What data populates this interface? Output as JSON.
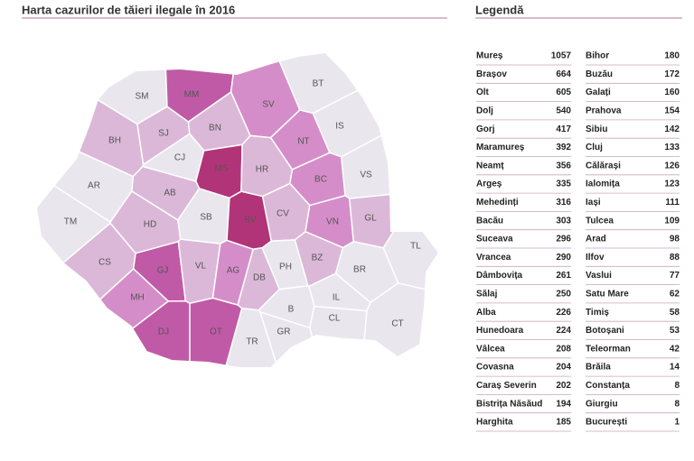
{
  "header": {
    "title": "Harta cazurilor de tăieri ilegale în 2016"
  },
  "map": {
    "regions": [
      {
        "label": "SM",
        "color": "#e9e6ee"
      },
      {
        "label": "MM",
        "color": "#c05aa6"
      },
      {
        "label": "BT",
        "color": "#e9e6ee"
      },
      {
        "label": "SV",
        "color": "#d58dc9"
      },
      {
        "label": "SJ",
        "color": "#dcb8d8"
      },
      {
        "label": "BN",
        "color": "#dcb8d8"
      },
      {
        "label": "IS",
        "color": "#e9e6ee"
      },
      {
        "label": "BH",
        "color": "#dcb8d8"
      },
      {
        "label": "CJ",
        "color": "#e9e6ee"
      },
      {
        "label": "NT",
        "color": "#d58dc9"
      },
      {
        "label": "MS",
        "color": "#b23478"
      },
      {
        "label": "HR",
        "color": "#dcb8d8"
      },
      {
        "label": "BC",
        "color": "#d58dc9"
      },
      {
        "label": "VS",
        "color": "#e9e6ee"
      },
      {
        "label": "AR",
        "color": "#e9e6ee"
      },
      {
        "label": "AB",
        "color": "#dcb8d8"
      },
      {
        "label": "SB",
        "color": "#e9e6ee"
      },
      {
        "label": "CV",
        "color": "#dcb8d8"
      },
      {
        "label": "VN",
        "color": "#d58dc9"
      },
      {
        "label": "GL",
        "color": "#dcb8d8"
      },
      {
        "label": "TM",
        "color": "#e9e6ee"
      },
      {
        "label": "HD",
        "color": "#dcb8d8"
      },
      {
        "label": "BV",
        "color": "#b23478"
      },
      {
        "label": "CS",
        "color": "#dcb8d8"
      },
      {
        "label": "GJ",
        "color": "#c05aa6"
      },
      {
        "label": "VL",
        "color": "#dcb8d8"
      },
      {
        "label": "AG",
        "color": "#d58dc9"
      },
      {
        "label": "DB",
        "color": "#dcb8d8"
      },
      {
        "label": "PH",
        "color": "#e9e6ee"
      },
      {
        "label": "BZ",
        "color": "#dcb8d8"
      },
      {
        "label": "BR",
        "color": "#e9e6ee"
      },
      {
        "label": "TL",
        "color": "#e9e6ee"
      },
      {
        "label": "MH",
        "color": "#d58dc9"
      },
      {
        "label": "IL",
        "color": "#e9e6ee"
      },
      {
        "label": "B",
        "color": "#e9e6ee"
      },
      {
        "label": "CL",
        "color": "#e9e6ee"
      },
      {
        "label": "DJ",
        "color": "#c05aa6"
      },
      {
        "label": "OT",
        "color": "#c05aa6"
      },
      {
        "label": "GR",
        "color": "#e9e6ee"
      },
      {
        "label": "TR",
        "color": "#e9e6ee"
      },
      {
        "label": "CT",
        "color": "#e9e6ee"
      }
    ]
  },
  "legend": {
    "title": "Legendă",
    "columns": [
      {
        "rows": [
          {
            "name": "Mureș",
            "value": 1057
          },
          {
            "name": "Brașov",
            "value": 664
          },
          {
            "name": "Olt",
            "value": 605
          },
          {
            "name": "Dolj",
            "value": 540
          },
          {
            "name": "Gorj",
            "value": 417
          },
          {
            "name": "Maramureș",
            "value": 392
          },
          {
            "name": "Neamț",
            "value": 356
          },
          {
            "name": "Argeș",
            "value": 335
          },
          {
            "name": "Mehedinți",
            "value": 316
          },
          {
            "name": "Bacău",
            "value": 303
          },
          {
            "name": "Suceava",
            "value": 296
          },
          {
            "name": "Vrancea",
            "value": 290
          },
          {
            "name": "Dâmbovița",
            "value": 261
          },
          {
            "name": "Sălaj",
            "value": 250
          },
          {
            "name": "Alba",
            "value": 226
          },
          {
            "name": "Hunedoara",
            "value": 224
          },
          {
            "name": "Vâlcea",
            "value": 208
          },
          {
            "name": "Covasna",
            "value": 204
          },
          {
            "name": "Caraș Severin",
            "value": 202
          },
          {
            "name": "Bistrița Năsăud",
            "value": 194
          },
          {
            "name": "Harghita",
            "value": 185
          }
        ]
      },
      {
        "rows": [
          {
            "name": "Bihor",
            "value": 180
          },
          {
            "name": "Buzău",
            "value": 172
          },
          {
            "name": "Galați",
            "value": 160
          },
          {
            "name": "Prahova",
            "value": 154
          },
          {
            "name": "Sibiu",
            "value": 142
          },
          {
            "name": "Cluj",
            "value": 133
          },
          {
            "name": "Călărași",
            "value": 126
          },
          {
            "name": "Ialomița",
            "value": 123
          },
          {
            "name": "Iași",
            "value": 111
          },
          {
            "name": "Tulcea",
            "value": 109
          },
          {
            "name": "Arad",
            "value": 98
          },
          {
            "name": "Ilfov",
            "value": 88
          },
          {
            "name": "Vaslui",
            "value": 77
          },
          {
            "name": "Satu Mare",
            "value": 62
          },
          {
            "name": "Timiș",
            "value": 58
          },
          {
            "name": "Botoșani",
            "value": 53
          },
          {
            "name": "Teleorman",
            "value": 42
          },
          {
            "name": "Brăila",
            "value": 14
          },
          {
            "name": "Constanța",
            "value": 8
          },
          {
            "name": "Giurgiu",
            "value": 8
          },
          {
            "name": "București",
            "value": 1
          }
        ]
      }
    ]
  }
}
